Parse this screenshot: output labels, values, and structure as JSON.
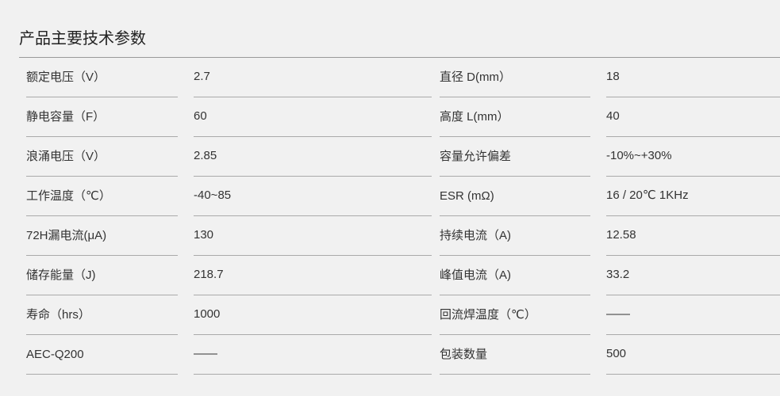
{
  "title": "产品主要技术参数",
  "rows": [
    {
      "l1": "额定电压（V）",
      "v1": "2.7",
      "l2": "直径 D(mm）",
      "v2": "18"
    },
    {
      "l1": "静电容量（F）",
      "v1": "60",
      "l2": "高度 L(mm）",
      "v2": "40"
    },
    {
      "l1": "浪涌电压（V）",
      "v1": "2.85",
      "l2": "容量允许偏差",
      "v2": "-10%~+30%"
    },
    {
      "l1": "工作温度（℃）",
      "v1": "-40~85",
      "l2": "ESR (mΩ)",
      "v2": "16 / 20℃ 1KHz"
    },
    {
      "l1": "72H漏电流(μA)",
      "v1": "130",
      "l2": "持续电流（A)",
      "v2": "12.58"
    },
    {
      "l1": "储存能量（J)",
      "v1": "218.7",
      "l2": "峰值电流（A)",
      "v2": "33.2"
    },
    {
      "l1": "寿命（hrs）",
      "v1": "1000",
      "l2": "回流焊温度（℃）",
      "v2": "——"
    },
    {
      "l1": "AEC-Q200",
      "v1": "——",
      "l2": "包装数量",
      "v2": "500"
    }
  ]
}
